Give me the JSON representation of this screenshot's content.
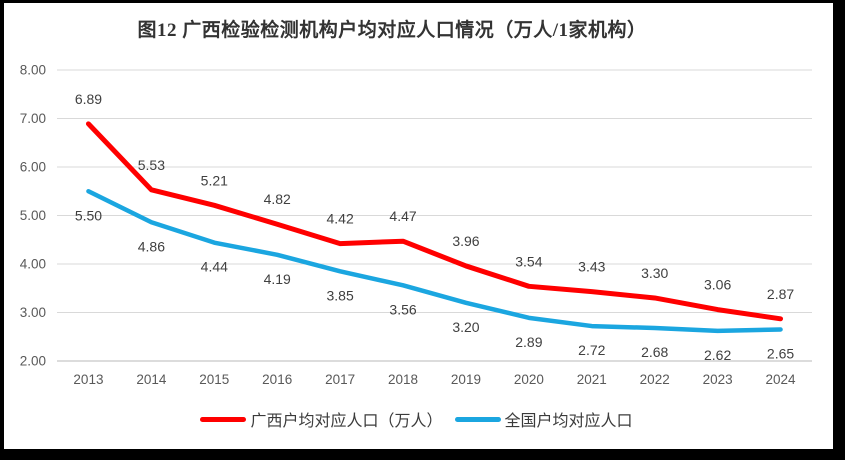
{
  "title": "图12 广西检验检测机构户均对应人口情况（万人/1家机构）",
  "chart_data": {
    "type": "line",
    "categories": [
      "2013",
      "2014",
      "2015",
      "2016",
      "2017",
      "2018",
      "2019",
      "2020",
      "2021",
      "2022",
      "2023",
      "2024"
    ],
    "series": [
      {
        "name": "广西户均对应人口（万人）",
        "color": "#FF0000",
        "label_position": "above",
        "values": [
          6.89,
          5.53,
          5.21,
          4.82,
          4.42,
          4.47,
          3.96,
          3.54,
          3.43,
          3.3,
          3.06,
          2.87
        ]
      },
      {
        "name": "全国户均对应人口",
        "color": "#1BA6E0",
        "label_position": "below",
        "values": [
          5.5,
          4.86,
          4.44,
          4.19,
          3.85,
          3.56,
          3.2,
          2.89,
          2.72,
          2.68,
          2.62,
          2.65
        ]
      }
    ],
    "ylim": [
      2,
      8
    ],
    "ytick_step": 1,
    "ytick_labels": [
      "2.00",
      "3.00",
      "4.00",
      "5.00",
      "6.00",
      "7.00",
      "8.00"
    ],
    "grid": true,
    "legend_position": "bottom",
    "colors": {
      "grid": "#D9D9D9",
      "axis": "#C6C6C6",
      "tick_label": "#595959",
      "data_label": "#404040",
      "frame_border": "#000000",
      "background": "#FFFFFF"
    }
  },
  "legend": {
    "items": [
      {
        "label": "广西户均对应人口（万人）",
        "color": "#FF0000"
      },
      {
        "label": "全国户均对应人口",
        "color": "#1BA6E0"
      }
    ]
  }
}
